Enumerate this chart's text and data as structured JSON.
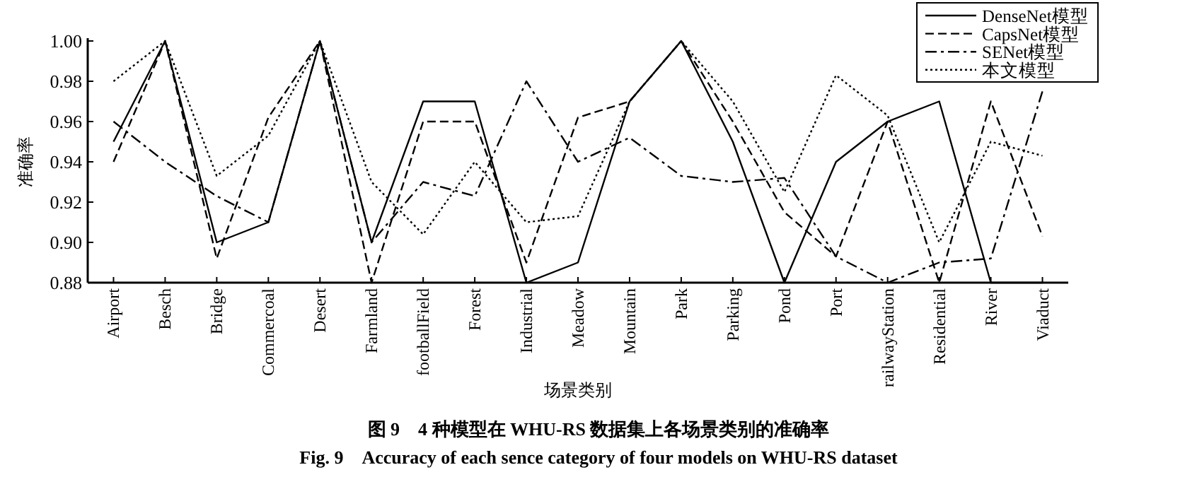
{
  "chart_data": {
    "type": "line",
    "xlabel": "场景类别",
    "ylabel": "准确率",
    "categories": [
      "Airport",
      "Besch",
      "Bridge",
      "Commercoal",
      "Desert",
      "Farmland",
      "footballField",
      "Forest",
      "Industrial",
      "Meadow",
      "Mountain",
      "Park",
      "Parking",
      "Pond",
      "Port",
      "railwayStation",
      "Residential",
      "River",
      "Viaduct"
    ],
    "ylim": [
      0.88,
      1.0
    ],
    "yticks": [
      {
        "value": 0.88,
        "label": "0.88"
      },
      {
        "value": 0.9,
        "label": "0.90"
      },
      {
        "value": 0.92,
        "label": "0.92"
      },
      {
        "value": 0.94,
        "label": "0.94"
      },
      {
        "value": 0.96,
        "label": "0.96"
      },
      {
        "value": 0.98,
        "label": "0.98"
      },
      {
        "value": 1.0,
        "label": "1.00"
      }
    ],
    "legend": "top right",
    "series": [
      {
        "name": "DenseNet模型",
        "color": "#000000",
        "line_style": "solid",
        "values": [
          0.95,
          1.0,
          0.9,
          0.91,
          1.0,
          0.9,
          0.97,
          0.97,
          0.88,
          0.89,
          0.97,
          1.0,
          0.95,
          0.88,
          0.94,
          0.96,
          0.97,
          0.88,
          0.88
        ]
      },
      {
        "name": "CapsNet模型",
        "color": "#000000",
        "line_style": "dashed",
        "values": [
          0.94,
          1.0,
          0.892,
          0.962,
          1.0,
          0.88,
          0.96,
          0.96,
          0.89,
          0.962,
          0.97,
          1.0,
          0.96,
          0.915,
          0.893,
          0.96,
          0.88,
          0.97,
          0.903
        ]
      },
      {
        "name": "SENet模型",
        "color": "#000000",
        "line_style": "dashdot",
        "values": [
          0.96,
          0.94,
          0.923,
          0.91,
          1.0,
          0.9,
          0.93,
          0.923,
          0.98,
          0.94,
          0.952,
          0.933,
          0.93,
          0.932,
          0.893,
          0.88,
          0.89,
          0.892,
          0.975
        ]
      },
      {
        "name": "本文模型",
        "color": "#000000",
        "line_style": "dotted",
        "values": [
          0.98,
          1.0,
          0.933,
          0.953,
          1.0,
          0.93,
          0.904,
          0.94,
          0.91,
          0.913,
          0.97,
          1.0,
          0.97,
          0.925,
          0.983,
          0.963,
          0.9,
          0.95,
          0.943
        ]
      }
    ],
    "annotations": [
      "图 9　4 种模型在 WHU-RS 数据集上各场景类别的准确率",
      "Fig. 9　Accuracy of each sence category of four models on WHU-RS dataset"
    ]
  }
}
